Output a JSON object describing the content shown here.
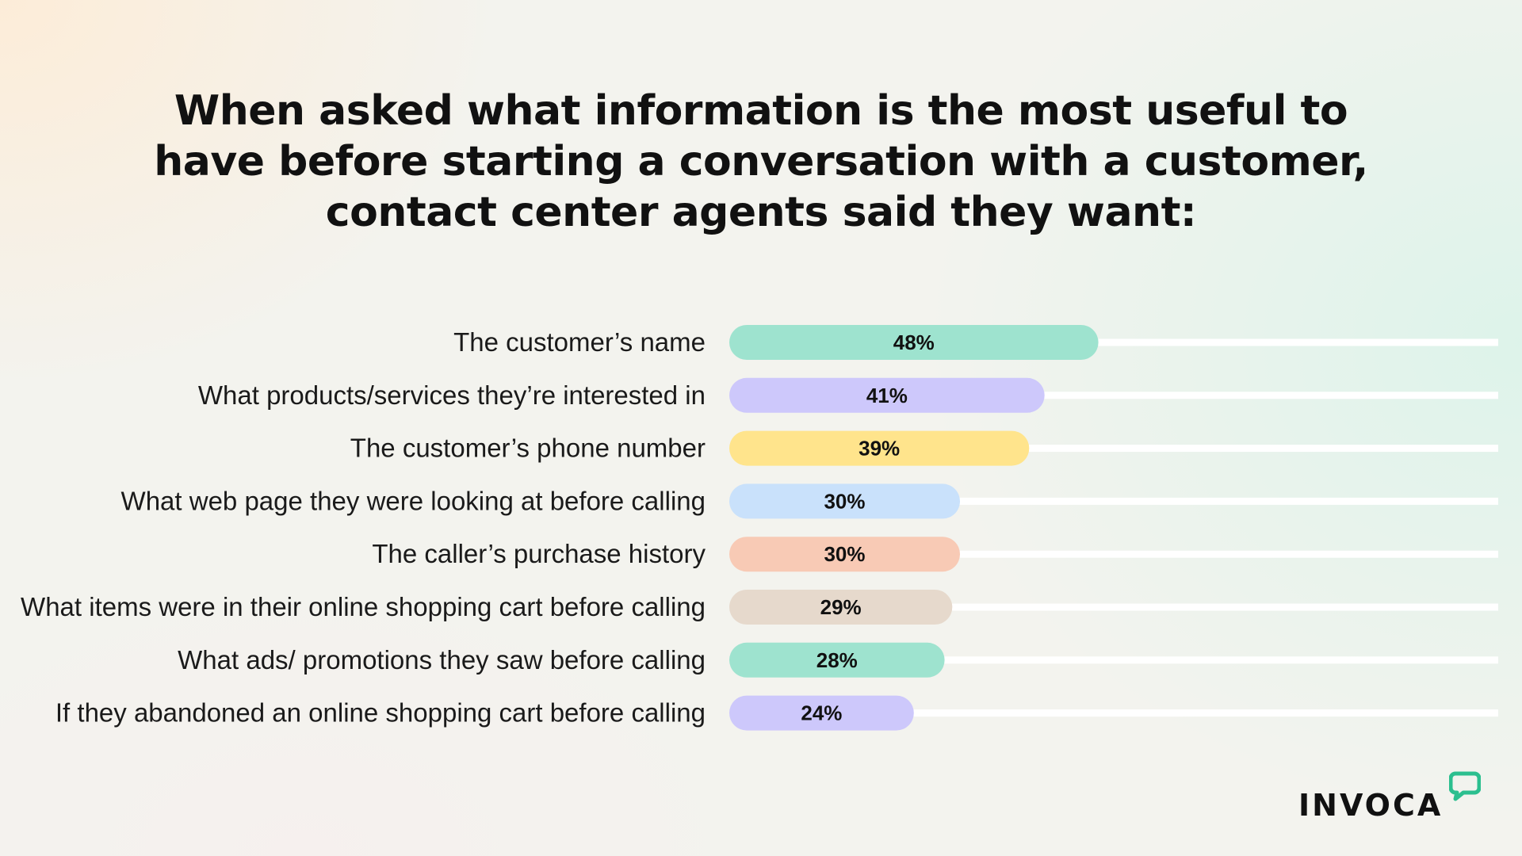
{
  "title": "When asked what information is the most useful to have before starting a conversation with a customer, contact center agents said they want:",
  "brand": {
    "name": "INVOCA",
    "accent": "#2bbf8f"
  },
  "chart_data": {
    "type": "bar",
    "orientation": "horizontal",
    "categories": [
      "The customer’s name",
      "What products/services they’re interested in",
      "The customer’s phone number",
      "What web page they were looking at before calling",
      "The caller’s purchase history",
      "What items were in their online shopping cart before calling",
      "What ads/ promotions they saw before calling",
      "If they abandoned an online shopping cart before calling"
    ],
    "values": [
      48,
      41,
      39,
      30,
      30,
      29,
      28,
      24
    ],
    "value_labels": [
      "48%",
      "41%",
      "39%",
      "30%",
      "30%",
      "29%",
      "28%",
      "24%"
    ],
    "unit": "%",
    "xlim": [
      0,
      100
    ],
    "grid": false,
    "legend": "none",
    "bar_colors": [
      "#9ee3cf",
      "#cdc8fb",
      "#ffe48c",
      "#c9e1fb",
      "#f8cab5",
      "#e6d9cc",
      "#9ee3cf",
      "#cdc8fb"
    ],
    "track_color": "#ffffff"
  }
}
